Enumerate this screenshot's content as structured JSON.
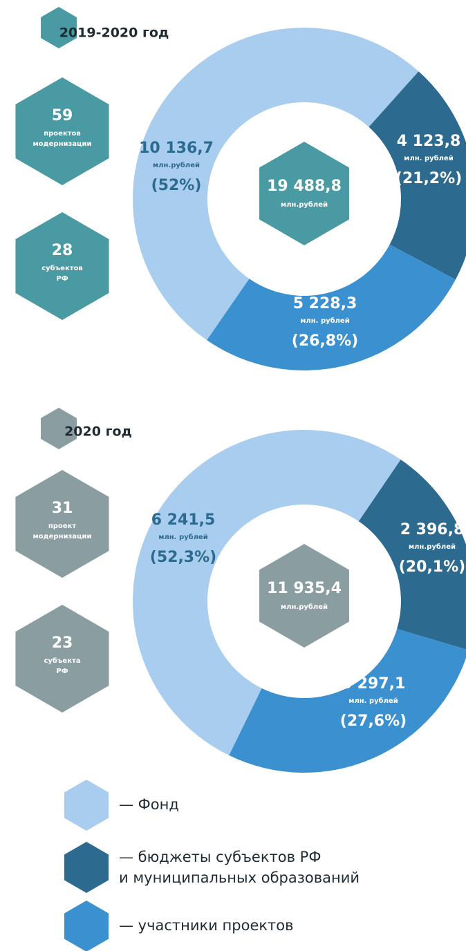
{
  "chart_data": [
    {
      "type": "pie",
      "title": "2019-2020 год",
      "hex_color": "#4a9aa4",
      "stats": [
        {
          "value": 59,
          "lines": [
            "проектов",
            "модернизации"
          ]
        },
        {
          "value": 28,
          "lines": [
            "субъектов",
            "РФ"
          ]
        }
      ],
      "total": 19488.8,
      "total_label": "19 488,8",
      "total_unit": "млн.рублей",
      "amounts": [
        10136.7,
        4123.8,
        5228.3
      ],
      "amount_labels": [
        "10 136,7",
        "4 123,8",
        "5 228,3"
      ],
      "unit_labels": [
        "млн.рублей",
        "млн. рублей",
        "млн. рублей"
      ],
      "values": [
        52,
        21.2,
        26.8
      ],
      "value_labels": [
        "(52%)",
        "(21,2%)",
        "(26,8%)"
      ],
      "colors": [
        "#a8cdee",
        "#2d6a8f",
        "#3b90d0"
      ]
    },
    {
      "type": "pie",
      "title": "2020 год",
      "hex_color": "#8a9da1",
      "stats": [
        {
          "value": 31,
          "lines": [
            "проект",
            "модернизации"
          ]
        },
        {
          "value": 23,
          "lines": [
            "субъекта",
            "РФ"
          ]
        }
      ],
      "total": 11935.4,
      "total_label": "11 935,4",
      "total_unit": "млн.рублей",
      "amounts": [
        6241.5,
        2396.8,
        3297.1
      ],
      "amount_labels": [
        "6 241,5",
        "2 396,8",
        "3 297,1"
      ],
      "unit_labels": [
        "млн. рублей",
        "млн.рублей",
        "млн. рублей"
      ],
      "values": [
        52.3,
        20.1,
        27.6
      ],
      "value_labels": [
        "(52,3%)",
        "(20,1%)",
        "(27,6%)"
      ],
      "colors": [
        "#a8cdee",
        "#2d6a8f",
        "#3b90d0"
      ]
    }
  ],
  "legend": [
    {
      "color": "#a8cdee",
      "lines": [
        "— Фонд"
      ]
    },
    {
      "color": "#2d6a8f",
      "lines": [
        "— бюджеты субъектов РФ",
        "и муниципальных образований"
      ]
    },
    {
      "color": "#3b90d0",
      "lines": [
        "— участники проектов"
      ]
    }
  ]
}
